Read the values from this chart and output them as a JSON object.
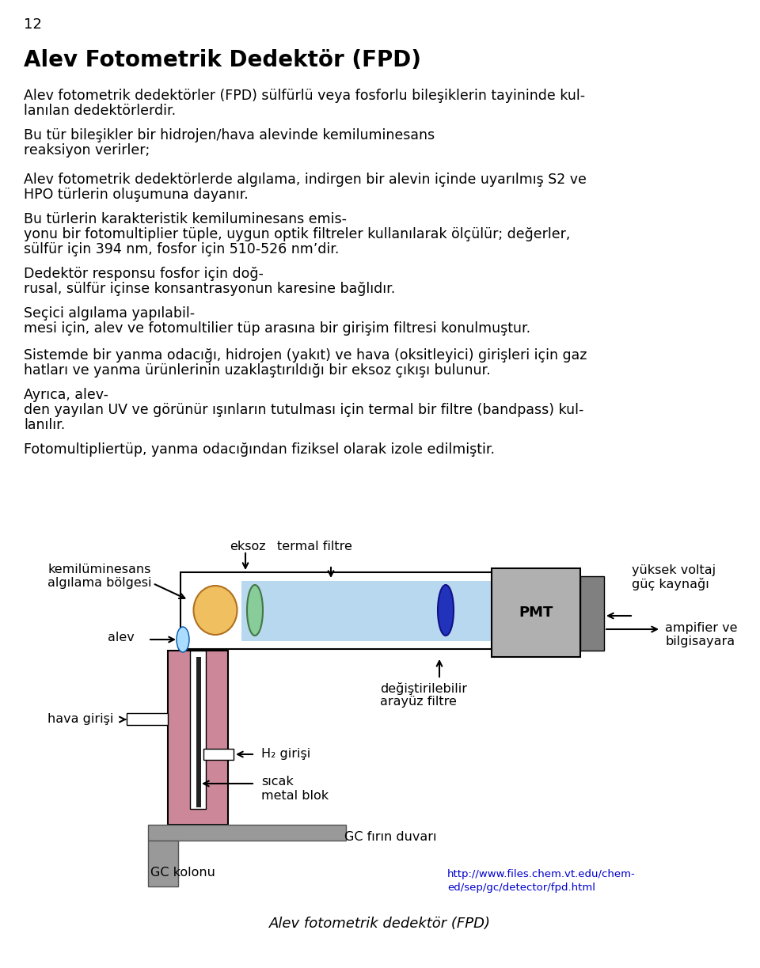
{
  "page_number": "12",
  "title": "Alev Fotometrik Dedektör (FPD)",
  "p1a": "Alev fotometrik dedektörler (FPD) sülfürlü veya fosforlu bileşiklerin tayininde kul-",
  "p1b": "lanılan dedektörlerdir.",
  "p2a": "Bu tür bileşikler bir hidrojen/hava alevinde kemiluminesans",
  "p2b": "reaksiyon verirler;",
  "p3a": "Alev fotometrik dedektörlerde algılama, indirgen bir alevin içinde uyarılmış S2 ve",
  "p3b": "HPO türlerin oluşumuna dayanır.",
  "p4a": "Bu türlerin karakteristik kemiluminesans emis-",
  "p4b": "yonu bir fotomultiplier tüple, uygun optik filtreler kullanılarak ölçülür; değerler,",
  "p4c": "sülfür için 394 nm, fosfor için 510-526 nm’dir.",
  "p5a": "Dedektör responsu fosfor için doğ-",
  "p5b": "rusal, sülfür içinse konsantrasyonun karesine bağlıdır.",
  "p6a": "Seçici algılama yapılabil-",
  "p6b": "mesi için, alev ve fotomultilier tüp arasına bir girişim filtresi konulmuştur.",
  "p7a": "Sistemde bir yanma odacığı, hidrojen (yakıt) ve hava (oksitleyici) girişleri için gaz",
  "p7b": "hatları ve yanma ürünlerinin uzaklaştırıldığı bir eksoz çıkışı bulunur.",
  "p8a": "Ayrıca, alev-",
  "p8b": "den yayılan UV ve görünür ışınların tutulması için termal bir filtre (bandpass) kul-",
  "p8c": "lanılır.",
  "p9": "Fotomultipliertüp, yanma odacığından fiziksel olarak izole edilmiştir.",
  "caption": "Alev fotometrik dedektör (FPD)",
  "url1": "http://www.files.chem.vt.edu/chem-",
  "url2": "ed/sep/gc/detector/fpd.html",
  "lbl_kemilu1": "kemilüminesans",
  "lbl_kemilu2": "algılama bölgesi",
  "lbl_eksoz": "eksoz",
  "lbl_termal": "termal filtre",
  "lbl_yuksek1": "yüksek voltaj",
  "lbl_yuksek2": "güç kaynağı",
  "lbl_alev": "alev",
  "lbl_hava": "hava girişi",
  "lbl_h2": "H₂ girişi",
  "lbl_sicak1": "sıcak",
  "lbl_sicak2": "metal blok",
  "lbl_degis1": "değiştirilebilir",
  "lbl_degis2": "arayüz filtre",
  "lbl_ampli1": "ampifier ve",
  "lbl_ampli2": "bilgisayara",
  "lbl_gcfirin": "GC fırın duvarı",
  "lbl_gckolon": "GC kolonu",
  "lbl_pmt": "PMT",
  "bg_color": "#ffffff",
  "text_color": "#000000",
  "title_color": "#000000",
  "url_color": "#0000cc",
  "fig_height": 1223,
  "fig_width": 960
}
